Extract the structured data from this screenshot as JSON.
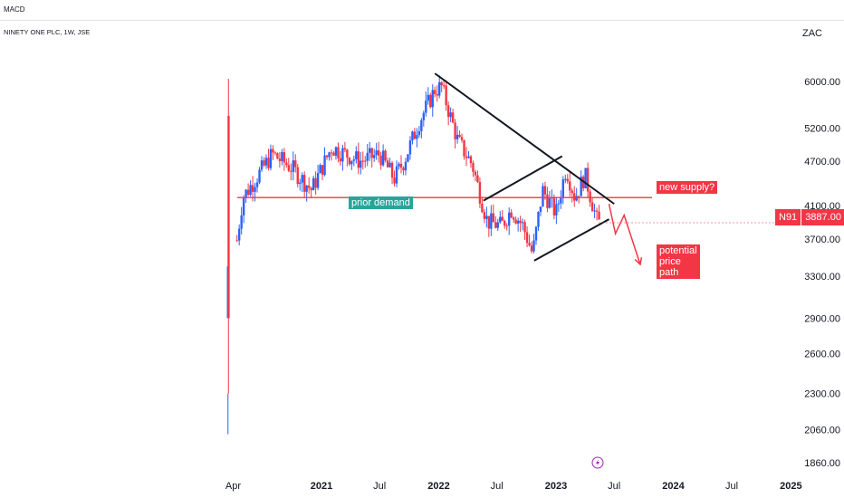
{
  "header": {
    "indicator_tab": "MACD",
    "symbol_line": "NINETY ONE PLC, 1W, JSE",
    "currency": "ZAC"
  },
  "price_tag": {
    "symbol": "N91",
    "value": "3887.00"
  },
  "colors": {
    "up": "#2962ff",
    "down": "#f23645",
    "annotation_red": "#f23645",
    "annotation_teal": "#26a69a",
    "trendline": "#131722"
  },
  "annotations": {
    "prior_demand": "prior demand",
    "new_supply": "new supply?",
    "potential_path": "potential\nprice\npath"
  },
  "icons": {
    "bolt": "lightning-bolt-icon"
  },
  "chart_data": {
    "type": "candlestick",
    "title": "NINETY ONE PLC, 1W, JSE",
    "y_scale": "log",
    "ylim": [
      1820,
      6700
    ],
    "y_ticks": [
      "6000.00",
      "5200.00",
      "4700.00",
      "4100.00",
      "3700.00",
      "3300.00",
      "2900.00",
      "2600.00",
      "2300.00",
      "2060.00",
      "1860.00"
    ],
    "x_ticks": [
      {
        "label": "Apr",
        "date": "2020-04-01"
      },
      {
        "label": "2021",
        "date": "2021-01-01"
      },
      {
        "label": "Jul",
        "date": "2021-07-01"
      },
      {
        "label": "2022",
        "date": "2022-01-01"
      },
      {
        "label": "Jul",
        "date": "2022-07-01"
      },
      {
        "label": "2023",
        "date": "2023-01-01"
      },
      {
        "label": "Jul",
        "date": "2023-07-01"
      },
      {
        "label": "2024",
        "date": "2024-01-01"
      },
      {
        "label": "Jul",
        "date": "2024-07-01"
      },
      {
        "label": "2025",
        "date": "2025-01-01"
      }
    ],
    "series_summary": [
      {
        "date": "2020-03-16",
        "price": 2900
      },
      {
        "date": "2020-03-23",
        "price": 6000
      },
      {
        "date": "2020-04-06",
        "price": 3500
      },
      {
        "date": "2020-05-01",
        "price": 4200
      },
      {
        "date": "2020-08-01",
        "price": 4800
      },
      {
        "date": "2020-10-01",
        "price": 4600
      },
      {
        "date": "2020-12-01",
        "price": 4300
      },
      {
        "date": "2021-02-01",
        "price": 4900
      },
      {
        "date": "2021-05-01",
        "price": 4700
      },
      {
        "date": "2021-07-01",
        "price": 4800
      },
      {
        "date": "2021-08-15",
        "price": 4450
      },
      {
        "date": "2021-09-15",
        "price": 4700
      },
      {
        "date": "2021-11-01",
        "price": 5300
      },
      {
        "date": "2021-12-20",
        "price": 5850
      },
      {
        "date": "2022-01-10",
        "price": 5900
      },
      {
        "date": "2022-03-01",
        "price": 5000
      },
      {
        "date": "2022-04-15",
        "price": 4650
      },
      {
        "date": "2022-06-01",
        "price": 3900
      },
      {
        "date": "2022-07-15",
        "price": 3850
      },
      {
        "date": "2022-08-15",
        "price": 4050
      },
      {
        "date": "2022-09-20",
        "price": 3850
      },
      {
        "date": "2022-10-20",
        "price": 3530
      },
      {
        "date": "2022-11-20",
        "price": 4300
      },
      {
        "date": "2023-01-01",
        "price": 4000
      },
      {
        "date": "2023-02-01",
        "price": 4600
      },
      {
        "date": "2023-03-01",
        "price": 4200
      },
      {
        "date": "2023-04-01",
        "price": 4500
      },
      {
        "date": "2023-05-10",
        "price": 3887
      }
    ],
    "drawings": {
      "prior_demand_level": 4200,
      "upper_trendline": [
        {
          "date": "2021-12-20",
          "price": 6150
        },
        {
          "date": "2023-07-01",
          "price": 4120
        }
      ],
      "channel_top": [
        {
          "date": "2022-05-20",
          "price": 4160
        },
        {
          "date": "2023-01-20",
          "price": 4770
        }
      ],
      "channel_bottom": [
        {
          "date": "2022-10-25",
          "price": 3460
        },
        {
          "date": "2023-06-15",
          "price": 3930
        }
      ],
      "potential_path": [
        {
          "date": "2023-06-15",
          "price": 4120
        },
        {
          "date": "2023-07-05",
          "price": 3760
        },
        {
          "date": "2023-08-01",
          "price": 3980
        },
        {
          "date": "2023-09-20",
          "price": 3420
        }
      ]
    },
    "last_price": 3887
  }
}
